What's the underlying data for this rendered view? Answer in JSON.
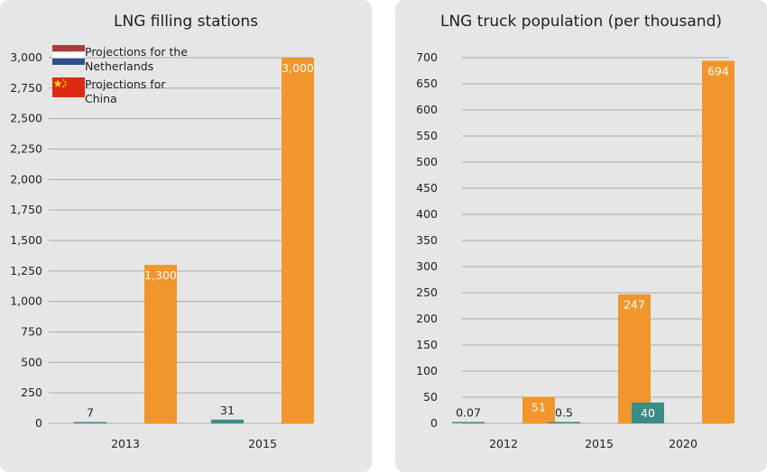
{
  "colors": {
    "teal": "#3b8c86",
    "orange": "#f0962c",
    "grid": "#a9a9a9",
    "panel_bg": "#e6e6e6"
  },
  "legend": {
    "items": [
      {
        "label": "Projections for the Netherlands",
        "color": "#3b8c86",
        "icon": "netherlands-flag-icon"
      },
      {
        "label": "Projections for China",
        "color": "#f0962c",
        "icon": "china-flag-icon"
      }
    ]
  },
  "chart_data": [
    {
      "type": "bar",
      "title": "LNG filling stations",
      "categories": [
        "2013",
        "2015"
      ],
      "series": [
        {
          "name": "Projections for the Netherlands",
          "values": [
            7,
            31
          ],
          "labels": [
            "7",
            "31"
          ]
        },
        {
          "name": "Projections for China",
          "values": [
            1300,
            3000
          ],
          "labels": [
            "1,300",
            "3,000"
          ]
        }
      ],
      "ylim": [
        0,
        3000
      ],
      "yticks": [
        "0",
        "250",
        "500",
        "750",
        "1,000",
        "1,250",
        "1,500",
        "1,750",
        "2,000",
        "2,250",
        "2,500",
        "2,750",
        "3,000"
      ],
      "grid": true,
      "legend": "top-left"
    },
    {
      "type": "bar",
      "title": "LNG truck population (per thousand)",
      "categories": [
        "2012",
        "2015",
        "2020"
      ],
      "series": [
        {
          "name": "Projections for the Netherlands",
          "values": [
            0.07,
            0.5,
            40
          ],
          "labels": [
            "0.07",
            "0.5",
            "40"
          ]
        },
        {
          "name": "Projections for China",
          "values": [
            51,
            247,
            694
          ],
          "labels": [
            "51",
            "247",
            "694"
          ]
        }
      ],
      "ylim": [
        0,
        700
      ],
      "yticks": [
        "0",
        "50",
        "100",
        "150",
        "200",
        "250",
        "300",
        "350",
        "400",
        "450",
        "500",
        "550",
        "600",
        "650",
        "700"
      ],
      "grid": true
    }
  ]
}
